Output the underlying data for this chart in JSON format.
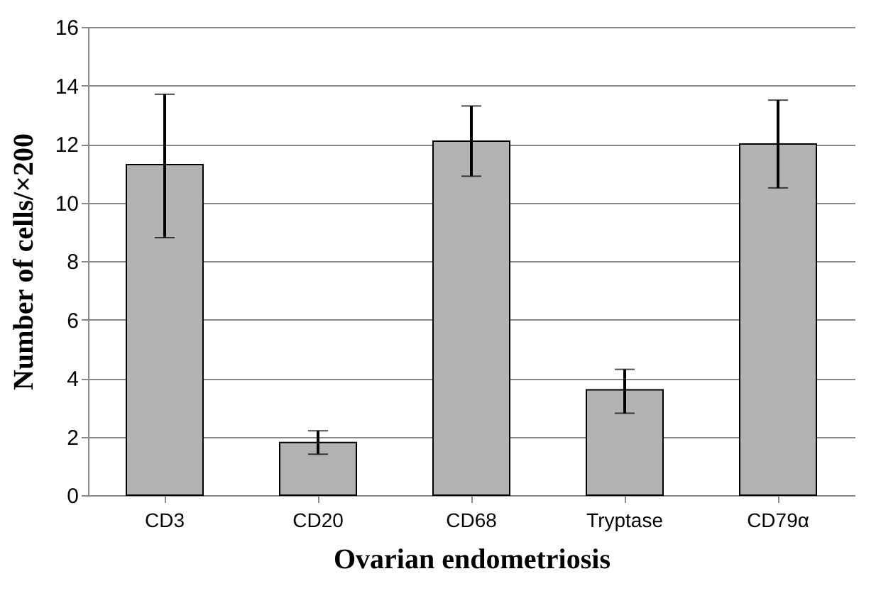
{
  "chart_data": {
    "type": "bar",
    "xlabel": "Ovarian endometriosis",
    "ylabel": "Number of cells/×200",
    "categories": [
      "CD3",
      "CD20",
      "CD68",
      "Tryptase",
      "CD79α"
    ],
    "values": [
      11.3,
      1.8,
      12.1,
      3.6,
      12.0
    ],
    "errors": [
      [
        8.8,
        13.7
      ],
      [
        1.4,
        2.2
      ],
      [
        10.9,
        13.3
      ],
      [
        2.8,
        4.3
      ],
      [
        10.5,
        13.5
      ]
    ],
    "color": "#b3b3b3",
    "ylim": [
      0,
      16
    ],
    "yticks": [
      0,
      2,
      4,
      6,
      8,
      10,
      12,
      14,
      16
    ],
    "grid": "y"
  }
}
